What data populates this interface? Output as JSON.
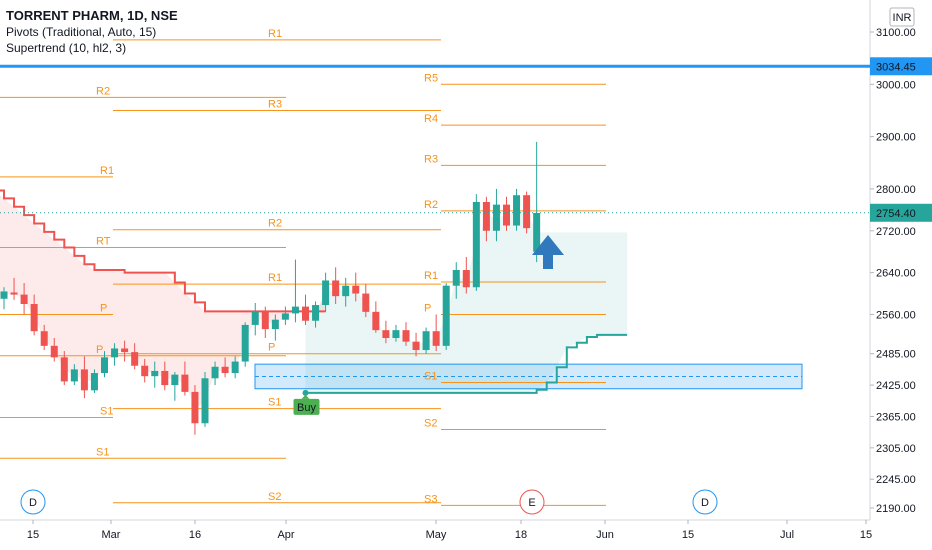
{
  "header": {
    "symbol_line": "TORRENT PHARM, 1D, NSE",
    "pivots_line": "Pivots (Traditional, Auto, 15)",
    "supertrend_line": "Supertrend (10, hl2, 3)"
  },
  "chart_data": {
    "type": "candlestick",
    "currency": "INR",
    "ylim": [
      2160,
      3130
    ],
    "y_ticks": [
      3100.0,
      3000.0,
      2900.0,
      2800.0,
      2720.0,
      2640.0,
      2560.0,
      2485.0,
      2425.0,
      2365.0,
      2305.0,
      2245.0,
      2190.0
    ],
    "x_ticks": [
      "15",
      "Mar",
      "16",
      "Apr",
      "May",
      "18",
      "Jun",
      "15",
      "Jul",
      "15"
    ],
    "price_tags": [
      {
        "label": "3034.45",
        "value": 3034.45,
        "color": "#2196f3"
      },
      {
        "label": "2754.40",
        "value": 2754.4,
        "color": "#26a69a"
      }
    ],
    "pivot_periods": [
      {
        "levels": [
          {
            "name": "R1",
            "value": 2823
          },
          {
            "name": "P",
            "value": 2560
          },
          {
            "name": "S1",
            "value": 2363
          }
        ]
      },
      {
        "levels": [
          {
            "name": "R2",
            "value": 2975
          },
          {
            "name": "RT",
            "value": 2688
          },
          {
            "name": "P",
            "value": 2481
          },
          {
            "name": "S1",
            "value": 2285
          }
        ]
      },
      {
        "levels": [
          {
            "name": "R1",
            "value": 3085
          },
          {
            "name": "R3",
            "value": 2950
          },
          {
            "name": "R2",
            "value": 2722
          },
          {
            "name": "R1",
            "value": 2618
          },
          {
            "name": "P",
            "value": 2485
          },
          {
            "name": "S1",
            "value": 2380
          },
          {
            "name": "S2",
            "value": 2200
          }
        ]
      },
      {
        "levels": [
          {
            "name": "R5",
            "value": 3000
          },
          {
            "name": "R4",
            "value": 2922
          },
          {
            "name": "R3",
            "value": 2845
          },
          {
            "name": "R2",
            "value": 2758
          },
          {
            "name": "R1",
            "value": 2622
          },
          {
            "name": "P",
            "value": 2560
          },
          {
            "name": "S1",
            "value": 2430
          },
          {
            "name": "S2",
            "value": 2340
          },
          {
            "name": "S3",
            "value": 2195
          }
        ]
      }
    ],
    "zone": {
      "from": 2418,
      "to": 2465
    },
    "supertrend_down": [
      2800,
      2800,
      2800,
      2800,
      2800,
      2800,
      2797,
      2782,
      2766,
      2750,
      2734,
      2718,
      2703,
      2688,
      2672,
      2656,
      2645,
      2645,
      2645,
      2640,
      2640,
      2640,
      2640,
      2640,
      2621,
      2600,
      2583,
      2566,
      2566,
      2566,
      2566,
      2566,
      2566,
      2566,
      2566,
      2566,
      2566,
      2566,
      2566,
      2566
    ],
    "supertrend_up": [
      2410,
      2410,
      2410,
      2410,
      2410,
      2410,
      2410,
      2410,
      2410,
      2410,
      2410,
      2410,
      2410,
      2410,
      2410,
      2410,
      2410,
      2410,
      2410,
      2410,
      2410,
      2410,
      2410,
      2416,
      2430,
      2459,
      2497,
      2506,
      2517,
      2521,
      2521,
      2521,
      2521
    ],
    "buy_label": "Buy",
    "event_labels": [
      "D",
      "E",
      "D"
    ],
    "candles": [
      {
        "o": 2590,
        "h": 2612,
        "l": 2570,
        "c": 2604
      },
      {
        "o": 2602,
        "h": 2630,
        "l": 2588,
        "c": 2598
      },
      {
        "o": 2598,
        "h": 2620,
        "l": 2560,
        "c": 2580
      },
      {
        "o": 2580,
        "h": 2598,
        "l": 2520,
        "c": 2528
      },
      {
        "o": 2528,
        "h": 2540,
        "l": 2492,
        "c": 2500
      },
      {
        "o": 2500,
        "h": 2515,
        "l": 2470,
        "c": 2478
      },
      {
        "o": 2478,
        "h": 2490,
        "l": 2425,
        "c": 2432
      },
      {
        "o": 2432,
        "h": 2465,
        "l": 2425,
        "c": 2455
      },
      {
        "o": 2455,
        "h": 2480,
        "l": 2400,
        "c": 2415
      },
      {
        "o": 2415,
        "h": 2455,
        "l": 2410,
        "c": 2448
      },
      {
        "o": 2448,
        "h": 2490,
        "l": 2440,
        "c": 2478
      },
      {
        "o": 2478,
        "h": 2505,
        "l": 2462,
        "c": 2495
      },
      {
        "o": 2495,
        "h": 2510,
        "l": 2470,
        "c": 2488
      },
      {
        "o": 2488,
        "h": 2505,
        "l": 2455,
        "c": 2462
      },
      {
        "o": 2462,
        "h": 2475,
        "l": 2430,
        "c": 2442
      },
      {
        "o": 2442,
        "h": 2470,
        "l": 2420,
        "c": 2452
      },
      {
        "o": 2452,
        "h": 2470,
        "l": 2415,
        "c": 2425
      },
      {
        "o": 2425,
        "h": 2450,
        "l": 2395,
        "c": 2445
      },
      {
        "o": 2445,
        "h": 2470,
        "l": 2405,
        "c": 2412
      },
      {
        "o": 2412,
        "h": 2425,
        "l": 2330,
        "c": 2352
      },
      {
        "o": 2352,
        "h": 2450,
        "l": 2345,
        "c": 2438
      },
      {
        "o": 2438,
        "h": 2470,
        "l": 2425,
        "c": 2460
      },
      {
        "o": 2460,
        "h": 2478,
        "l": 2440,
        "c": 2448
      },
      {
        "o": 2448,
        "h": 2480,
        "l": 2438,
        "c": 2470
      },
      {
        "o": 2470,
        "h": 2545,
        "l": 2460,
        "c": 2540
      },
      {
        "o": 2540,
        "h": 2582,
        "l": 2520,
        "c": 2565
      },
      {
        "o": 2565,
        "h": 2575,
        "l": 2515,
        "c": 2532
      },
      {
        "o": 2532,
        "h": 2560,
        "l": 2510,
        "c": 2550
      },
      {
        "o": 2550,
        "h": 2575,
        "l": 2540,
        "c": 2562
      },
      {
        "o": 2562,
        "h": 2665,
        "l": 2545,
        "c": 2575
      },
      {
        "o": 2575,
        "h": 2598,
        "l": 2540,
        "c": 2548
      },
      {
        "o": 2548,
        "h": 2585,
        "l": 2535,
        "c": 2578
      },
      {
        "o": 2578,
        "h": 2640,
        "l": 2565,
        "c": 2625
      },
      {
        "o": 2625,
        "h": 2650,
        "l": 2580,
        "c": 2595
      },
      {
        "o": 2595,
        "h": 2630,
        "l": 2575,
        "c": 2615
      },
      {
        "o": 2615,
        "h": 2640,
        "l": 2585,
        "c": 2600
      },
      {
        "o": 2600,
        "h": 2618,
        "l": 2555,
        "c": 2565
      },
      {
        "o": 2565,
        "h": 2585,
        "l": 2525,
        "c": 2530
      },
      {
        "o": 2530,
        "h": 2548,
        "l": 2505,
        "c": 2515
      },
      {
        "o": 2515,
        "h": 2540,
        "l": 2508,
        "c": 2530
      },
      {
        "o": 2530,
        "h": 2545,
        "l": 2500,
        "c": 2508
      },
      {
        "o": 2508,
        "h": 2525,
        "l": 2480,
        "c": 2492
      },
      {
        "o": 2492,
        "h": 2535,
        "l": 2485,
        "c": 2528
      },
      {
        "o": 2528,
        "h": 2560,
        "l": 2490,
        "c": 2500
      },
      {
        "o": 2500,
        "h": 2620,
        "l": 2492,
        "c": 2615
      },
      {
        "o": 2615,
        "h": 2660,
        "l": 2590,
        "c": 2645
      },
      {
        "o": 2645,
        "h": 2670,
        "l": 2600,
        "c": 2612
      },
      {
        "o": 2612,
        "h": 2790,
        "l": 2605,
        "c": 2775
      },
      {
        "o": 2775,
        "h": 2785,
        "l": 2700,
        "c": 2720
      },
      {
        "o": 2720,
        "h": 2800,
        "l": 2700,
        "c": 2770
      },
      {
        "o": 2770,
        "h": 2785,
        "l": 2720,
        "c": 2730
      },
      {
        "o": 2730,
        "h": 2800,
        "l": 2720,
        "c": 2788
      },
      {
        "o": 2788,
        "h": 2795,
        "l": 2715,
        "c": 2725
      },
      {
        "o": 2680,
        "h": 2890,
        "l": 2660,
        "c": 2754
      }
    ]
  }
}
